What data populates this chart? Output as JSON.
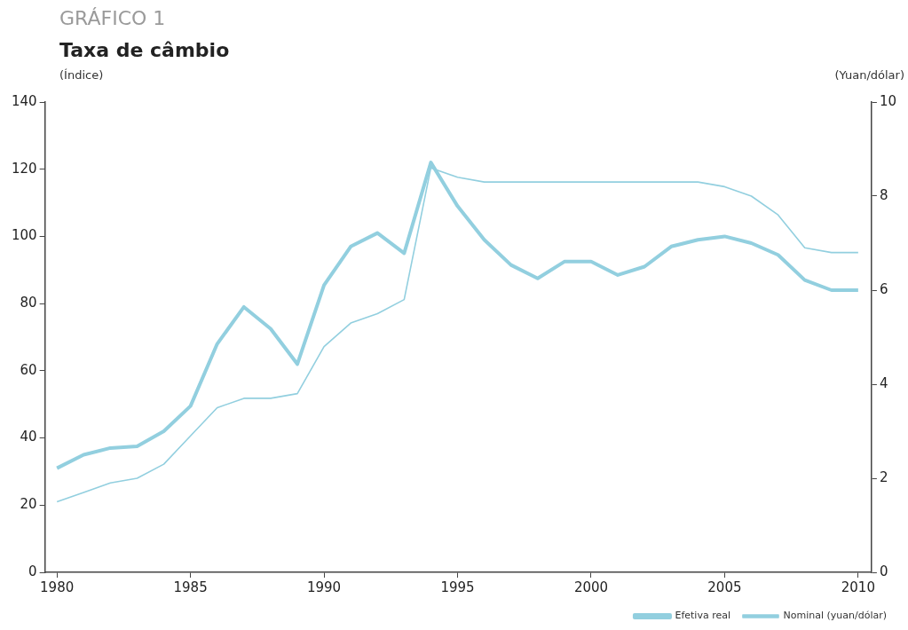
{
  "chart_data": {
    "type": "line",
    "title": "GRÁFICO 1",
    "subtitle": "Taxa de câmbio",
    "ylabel": "(Índice)",
    "y2label": "(Yuan/dólar)",
    "x": [
      1980,
      1981,
      1982,
      1983,
      1984,
      1985,
      1986,
      1987,
      1988,
      1989,
      1990,
      1991,
      1992,
      1993,
      1994,
      1995,
      1996,
      1997,
      1998,
      1999,
      2000,
      2001,
      2002,
      2003,
      2004,
      2005,
      2006,
      2007,
      2008,
      2009,
      2010
    ],
    "series": [
      {
        "name": "Efetiva real",
        "color": "#92cfdf",
        "values": [
          31,
          35,
          37,
          37.5,
          42,
          49.5,
          68,
          79,
          72.5,
          62,
          85.5,
          97,
          101,
          95,
          122,
          109,
          99,
          91.5,
          87.5,
          92.5,
          92.5,
          88.5,
          91,
          97,
          99,
          100,
          98,
          94.5,
          87,
          84,
          84
        ]
      },
      {
        "name": "Nominal (yuan/dólar)",
        "color": "#92cfdf",
        "axis": "y2",
        "values": [
          1.5,
          1.7,
          1.9,
          2.0,
          2.3,
          2.9,
          3.5,
          3.7,
          3.7,
          3.8,
          4.8,
          5.3,
          5.5,
          5.8,
          8.6,
          8.4,
          8.3,
          8.3,
          8.3,
          8.3,
          8.3,
          8.3,
          8.3,
          8.3,
          8.3,
          8.2,
          8.0,
          7.6,
          6.9,
          6.8,
          6.8
        ]
      }
    ],
    "xlim": [
      1979.55,
      2010.5
    ],
    "xticks": [
      1980,
      1985,
      1990,
      1995,
      2000,
      2005,
      2010
    ],
    "ylim": [
      0,
      140
    ],
    "yticks": [
      0,
      20,
      40,
      60,
      80,
      100,
      120,
      140
    ],
    "y2lim": [
      0,
      10
    ],
    "y2ticks": [
      0,
      2,
      4,
      6,
      8,
      10
    ],
    "grid": false,
    "legend": "bottom right",
    "marker": "none",
    "line_style": "solid"
  }
}
